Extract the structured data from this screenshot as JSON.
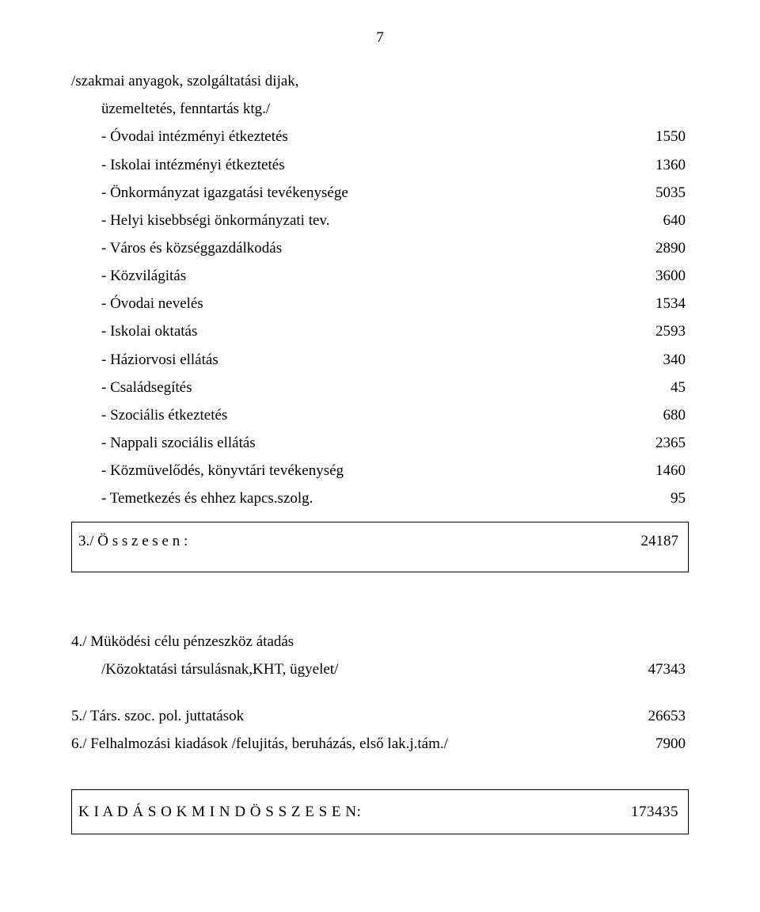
{
  "page_number": "7",
  "header": {
    "line1": "/szakmai  anyagok, szolgáltatási  dijak,",
    "line2": "üzemeltetés, fenntartás ktg./"
  },
  "items": [
    {
      "label": "- Óvodai  intézményi étkeztetés",
      "value": "1550"
    },
    {
      "label": "- Iskolai  intézményi  étkeztetés",
      "value": "1360"
    },
    {
      "label": "- Önkormányzat igazgatási tevékenysége",
      "value": "5035"
    },
    {
      "label": "-  Helyi kisebbségi önkormányzati tev.",
      "value": "640"
    },
    {
      "label": "- Város  és  községgazdálkodás",
      "value": "2890"
    },
    {
      "label": "- Közvilágitás",
      "value": "3600"
    },
    {
      "label": "- Óvodai  nevelés",
      "value": "1534"
    },
    {
      "label": "- Iskolai oktatás",
      "value": "2593"
    },
    {
      "label": "- Háziorvosi  ellátás",
      "value": "340"
    },
    {
      "label": "- Családsegítés",
      "value": "45"
    },
    {
      "label": "- Szociális étkeztetés",
      "value": "680"
    },
    {
      "label": "- Nappali  szociális  ellátás",
      "value": "2365"
    },
    {
      "label": "- Közmüvelődés,  könyvtári tevékenység",
      "value": "1460"
    },
    {
      "label": "- Temetkezés  és  ehhez  kapcs.szolg.",
      "value": "95"
    }
  ],
  "subtotal": {
    "label": "3./ Ö s s z e s e n :",
    "value": "24187"
  },
  "section4": {
    "title": "4./  Müködési  célu  pénzeszköz  átadás",
    "sub_label": "/Közoktatási társulásnak,KHT, ügyelet/",
    "sub_value": "47343"
  },
  "section5": {
    "label": "5./  Társ.  szoc.  pol.  juttatások",
    "value": "26653"
  },
  "section6": {
    "label": "6./  Felhalmozási  kiadások /felujitás, beruházás, első lak.j.tám./",
    "value": "7900"
  },
  "grand_total": {
    "label": "K  I  A  D  Á  S  O  K    M  I  N  D Ö  S  S  Z  E  S  E N:",
    "value": "173435"
  }
}
